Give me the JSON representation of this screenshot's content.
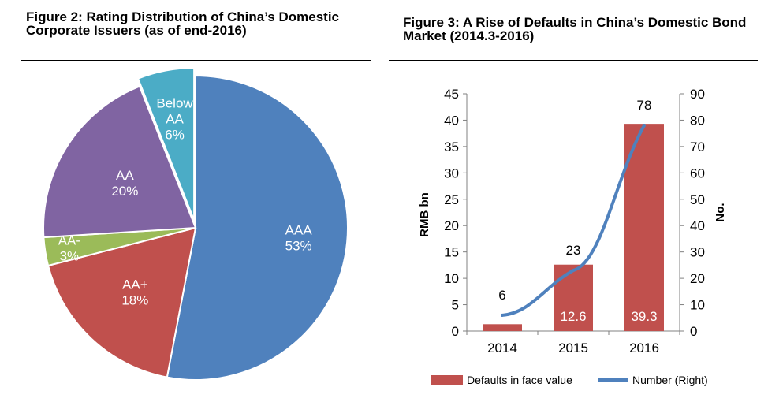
{
  "figure2": {
    "title": "Figure 2: Rating Distribution of China’s Domestic Corporate Issuers (as of end-2016)"
  },
  "figure3": {
    "title": "Figure 3: A Rise of Defaults in China’s Domestic Bond Market (2014.3-2016)"
  },
  "colors": {
    "AAA": "#4F81BD",
    "AA+": "#C0504D",
    "AA-": "#9BBB59",
    "AA": "#8064A2",
    "Below AA": "#4BACC6",
    "bars": "#C0504D",
    "line": "#4F81BD"
  },
  "chart_data": [
    {
      "type": "pie",
      "title": "Figure 2: Rating Distribution of China’s Domestic Corporate Issuers (as of end-2016)",
      "slices": [
        {
          "label": "AAA",
          "value": 53,
          "value_label": "53%"
        },
        {
          "label": "AA+",
          "value": 18,
          "value_label": "18%"
        },
        {
          "label": "AA-",
          "value": 3,
          "value_label": "3%"
        },
        {
          "label": "AA",
          "value": 20,
          "value_label": "20%"
        },
        {
          "label": "Below AA",
          "value": 6,
          "value_label": "6%",
          "exploded": true
        }
      ]
    },
    {
      "type": "bar",
      "title": "Figure 3: A Rise of Defaults in China’s Domestic Bond Market (2014.3-2016)",
      "categories": [
        "2014",
        "2015",
        "2016"
      ],
      "ylabel": "RMB bn",
      "y2label": "No.",
      "ylim": [
        0,
        45
      ],
      "y2lim": [
        0,
        90
      ],
      "yticks": [
        0,
        5,
        10,
        15,
        20,
        25,
        30,
        35,
        40,
        45
      ],
      "y2ticks": [
        0,
        10,
        20,
        30,
        40,
        50,
        60,
        70,
        80,
        90
      ],
      "legend_position": "bottom",
      "series": [
        {
          "name": "Defaults in face value",
          "type": "bar",
          "axis": "left",
          "values": [
            1.3,
            12.6,
            39.3
          ],
          "data_labels": [
            "",
            "12.6",
            "39.3"
          ]
        },
        {
          "name": "Number (Right)",
          "type": "line",
          "axis": "right",
          "values": [
            6,
            23,
            78
          ],
          "data_labels": [
            "6",
            "23",
            "78"
          ]
        }
      ]
    }
  ]
}
